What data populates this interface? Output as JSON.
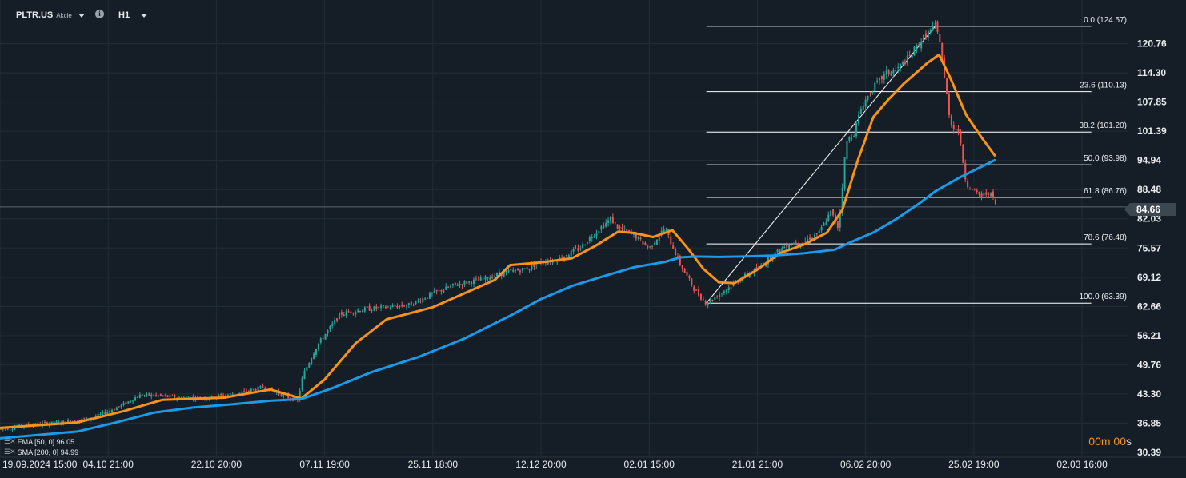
{
  "header": {
    "symbol": "PLTR.US",
    "instrument_type": "Akcie",
    "info_icon": "info-icon",
    "timeframe": "H1"
  },
  "indicators": [
    {
      "label": "EMA [50, 0] 96.05",
      "color": "#f7931a",
      "value": 96.05
    },
    {
      "label": "SMA [200, 0] 94.99",
      "color": "#1a9bea",
      "value": 94.99
    }
  ],
  "current_price": "84.66",
  "countdown": {
    "value_m": "00",
    "unit_m": "m",
    "value_s": "00",
    "unit_s": "s"
  },
  "colors": {
    "background": "#151e26",
    "grid": "#222c35",
    "up_candle": "#26a69a",
    "down_candle": "#ef5350",
    "ema": "#f7931a",
    "sma": "#1a9bea",
    "fib": "#ffffff"
  },
  "chart_data": {
    "type": "line",
    "title": "",
    "price_scale_ticks": [
      "120.76",
      "114.30",
      "107.85",
      "101.39",
      "94.94",
      "88.48",
      "82.03",
      "75.57",
      "69.12",
      "62.66",
      "56.21",
      "49.76",
      "43.30",
      "36.85",
      "30.39"
    ],
    "time_axis_ticks": [
      "19.09.2024 15:00",
      "04.10 21:00",
      "22.10 20:00",
      "07.11 19:00",
      "25.11 18:00",
      "12.12 20:00",
      "02.01 15:00",
      "21.01 21:00",
      "06.02 20:00",
      "25.02 19:00",
      "02.03 16:00"
    ],
    "ylim": [
      30.39,
      127.0
    ],
    "x_axis": "hourly bar index, 0 to 1460 (= 02.03 16:00)",
    "grid": true,
    "fibonacci_retracement": {
      "levels": [
        {
          "label": "0.0 (124.57)",
          "level": 0.0,
          "price": 124.57
        },
        {
          "label": "23.6 (110.13)",
          "level": 23.6,
          "price": 110.13
        },
        {
          "label": "38.2 (101.20)",
          "level": 38.2,
          "price": 101.2
        },
        {
          "label": "50.0 (93.98)",
          "level": 50.0,
          "price": 93.98
        },
        {
          "label": "61.8 (86.76)",
          "level": 61.8,
          "price": 86.76
        },
        {
          "label": "78.6 (76.48)",
          "level": 78.6,
          "price": 76.48
        },
        {
          "label": "100.0 (63.39)",
          "level": 100.0,
          "price": 63.39
        }
      ],
      "x_start": 914,
      "x_end": 1412,
      "anchor_low": {
        "x": 914,
        "price": 63.39
      },
      "anchor_high": {
        "x": 1210,
        "price": 124.57
      }
    },
    "series": [
      {
        "name": "EMA [50, 0]",
        "color": "#f7931a",
        "x": [
          0,
          100,
          160,
          210,
          290,
          350,
          390,
          420,
          460,
          500,
          560,
          600,
          640,
          660,
          700,
          740,
          770,
          800,
          820,
          845,
          870,
          890,
          910,
          930,
          950,
          980,
          1010,
          1040,
          1070,
          1090,
          1110,
          1130,
          1150,
          1170,
          1200,
          1215,
          1230,
          1250,
          1270,
          1287
        ],
        "values": [
          35.8,
          37.0,
          39.5,
          42.0,
          42.5,
          44.3,
          42.3,
          46.5,
          54.5,
          59.8,
          62.5,
          65.5,
          68.5,
          71.8,
          72.4,
          73.3,
          76.0,
          79.2,
          78.9,
          78.0,
          79.5,
          75.5,
          71.0,
          68.0,
          67.8,
          70.8,
          74.5,
          76.3,
          79.0,
          84.0,
          95.0,
          104.5,
          108.5,
          112.0,
          116.5,
          118.3,
          113.0,
          105.0,
          100.0,
          96.05
        ]
      },
      {
        "name": "SMA [200, 0]",
        "color": "#1a9bea",
        "x": [
          0,
          100,
          150,
          200,
          250,
          300,
          350,
          390,
          430,
          480,
          540,
          600,
          660,
          700,
          740,
          780,
          820,
          860,
          880,
          900,
          930,
          960,
          1000,
          1040,
          1080,
          1100,
          1130,
          1160,
          1190,
          1210,
          1240,
          1287
        ],
        "values": [
          33.5,
          35.0,
          37.0,
          39.2,
          40.3,
          41.0,
          41.8,
          42.2,
          44.6,
          48.1,
          51.4,
          55.5,
          60.6,
          64.3,
          67.2,
          69.3,
          71.3,
          72.5,
          73.5,
          73.7,
          73.6,
          73.7,
          73.9,
          74.4,
          75.2,
          76.8,
          79.0,
          82.0,
          85.5,
          88.1,
          91.0,
          94.99
        ]
      }
    ],
    "candles_summary": "Hourly OHLC candlesticks rising from about 34 (Sep 2024) to a peak near 124.6 (mid Feb 2025), then falling to 84.66.",
    "price_path": {
      "x": [
        0,
        40,
        80,
        120,
        160,
        180,
        200,
        230,
        270,
        310,
        340,
        370,
        385,
        392,
        410,
        440,
        470,
        500,
        530,
        560,
        590,
        620,
        650,
        680,
        700,
        720,
        750,
        770,
        790,
        800,
        820,
        840,
        860,
        880,
        900,
        914,
        940,
        960,
        980,
        1000,
        1020,
        1040,
        1060,
        1075,
        1085,
        1095,
        1105,
        1115,
        1130,
        1145,
        1160,
        1175,
        1190,
        1200,
        1210,
        1216,
        1222,
        1230,
        1240,
        1250,
        1260,
        1270,
        1280,
        1290
      ],
      "values": [
        35.5,
        36.5,
        37.0,
        38.0,
        41.0,
        43.0,
        43.0,
        42.5,
        42.5,
        43.5,
        44.8,
        42.8,
        41.8,
        47.5,
        54.0,
        61.0,
        62.0,
        62.5,
        63.0,
        65.5,
        67.5,
        68.5,
        70.0,
        71.0,
        72.5,
        73.0,
        75.5,
        79.0,
        82.0,
        80.0,
        78.5,
        75.5,
        80.0,
        72.0,
        66.0,
        63.4,
        66.5,
        69.0,
        71.0,
        74.0,
        76.5,
        77.0,
        79.0,
        83.5,
        80.0,
        99.0,
        101.0,
        107.0,
        111.0,
        114.0,
        115.0,
        117.5,
        121.0,
        123.0,
        124.57,
        121.5,
        113.0,
        103.0,
        101.5,
        90.0,
        88.0,
        87.0,
        88.0,
        84.66
      ]
    }
  }
}
